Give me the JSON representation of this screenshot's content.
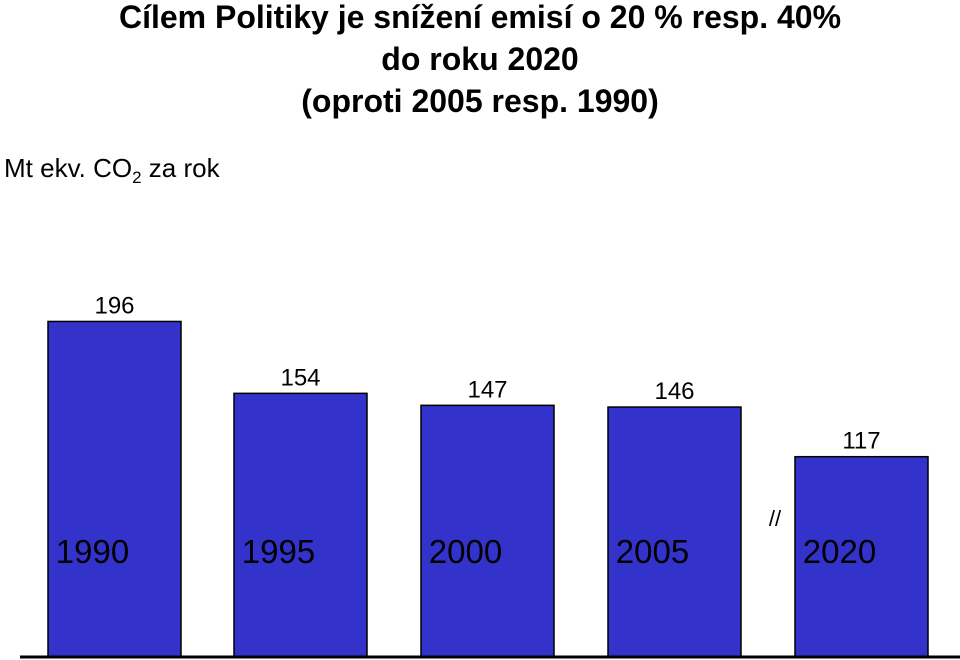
{
  "chart_data": {
    "type": "bar",
    "title_lines": [
      "Cílem Politiky je snížení emisí o 20 % resp. 40%",
      "do roku 2020",
      "(oproti 2005 resp. 1990)"
    ],
    "ylabel_main": "Mt ekv. CO",
    "ylabel_sub": "2",
    "ylabel_suffix": " za rok",
    "categories": [
      "1990",
      "1995",
      "2000",
      "2005",
      "2020"
    ],
    "values": [
      196,
      154,
      147,
      146,
      117
    ],
    "value_labels": [
      "196",
      "154",
      "147",
      "146",
      "117"
    ],
    "axis_break_label": "//",
    "colors": {
      "bar": "#3333cc",
      "outline": "#000000"
    }
  }
}
